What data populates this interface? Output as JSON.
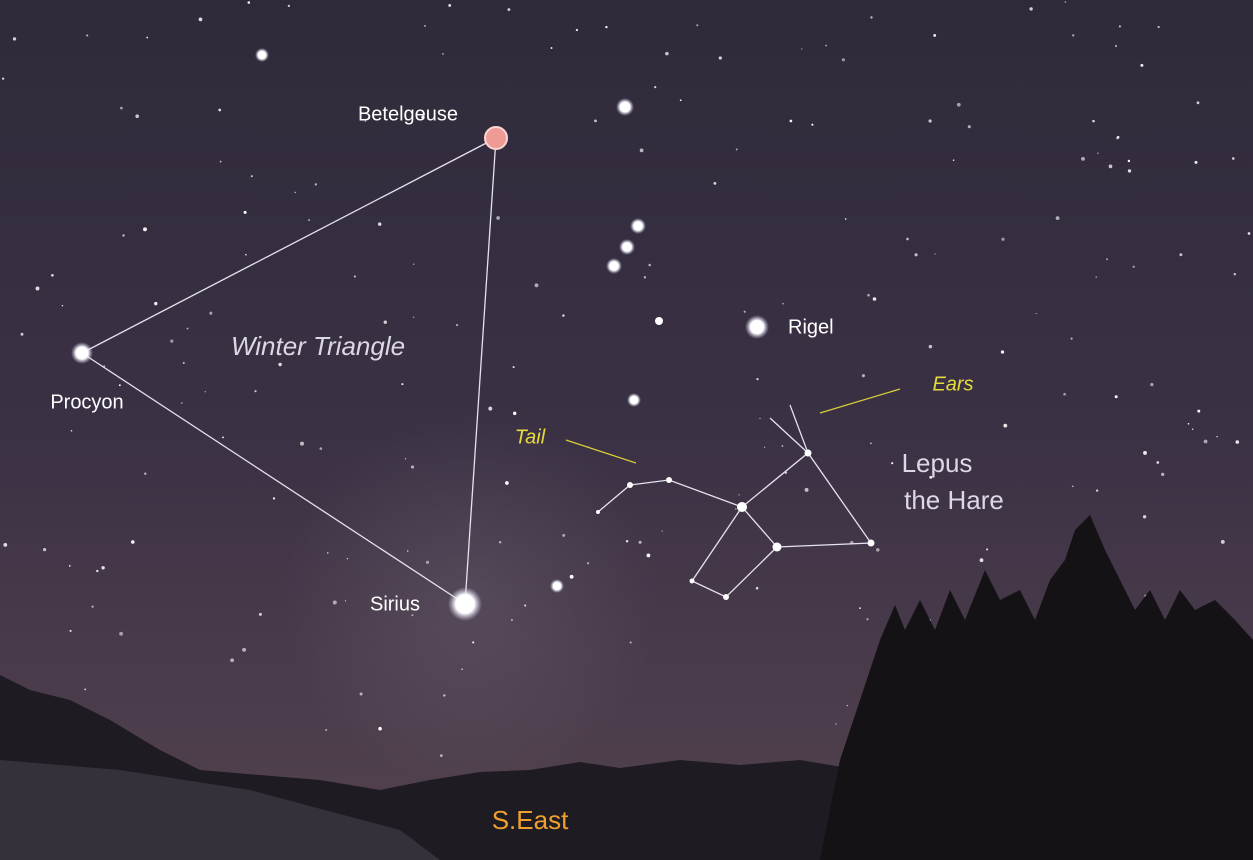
{
  "star_labels": [
    "Betelgeuse",
    "Procyon",
    "Sirius",
    "Rigel"
  ],
  "asterism": "Winter Triangle",
  "constellation": {
    "name_lines": [
      "Lepus",
      "the Hare"
    ],
    "parts": [
      "Tail",
      "Ears"
    ]
  },
  "direction": "S.East"
}
